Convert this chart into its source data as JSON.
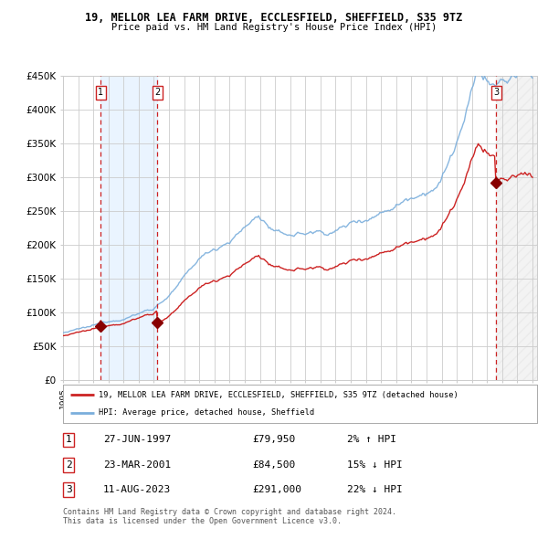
{
  "title1": "19, MELLOR LEA FARM DRIVE, ECCLESFIELD, SHEFFIELD, S35 9TZ",
  "title2": "Price paid vs. HM Land Registry's House Price Index (HPI)",
  "ylim": [
    0,
    450000
  ],
  "ytick_vals": [
    0,
    50000,
    100000,
    150000,
    200000,
    250000,
    300000,
    350000,
    400000,
    450000
  ],
  "ytick_labels": [
    "£0",
    "£50K",
    "£100K",
    "£150K",
    "£200K",
    "£250K",
    "£300K",
    "£350K",
    "£400K",
    "£450K"
  ],
  "sale_years": [
    1997.49,
    2001.22,
    2023.61
  ],
  "sale_prices": [
    79950,
    84500,
    291000
  ],
  "sale_labels": [
    "1",
    "2",
    "3"
  ],
  "legend_line1": "19, MELLOR LEA FARM DRIVE, ECCLESFIELD, SHEFFIELD, S35 9TZ (detached house)",
  "legend_line2": "HPI: Average price, detached house, Sheffield",
  "table": [
    [
      "1",
      "27-JUN-1997",
      "£79,950",
      "2% ↑ HPI"
    ],
    [
      "2",
      "23-MAR-2001",
      "£84,500",
      "15% ↓ HPI"
    ],
    [
      "3",
      "11-AUG-2023",
      "£291,000",
      "22% ↓ HPI"
    ]
  ],
  "footnote": "Contains HM Land Registry data © Crown copyright and database right 2024.\nThis data is licensed under the Open Government Licence v3.0.",
  "hpi_color": "#7aaedc",
  "price_color": "#cc2222",
  "bg_color": "#ffffff",
  "grid_color": "#cccccc",
  "shade_blue": "#ddeeff",
  "shade_gray": "#dddddd"
}
